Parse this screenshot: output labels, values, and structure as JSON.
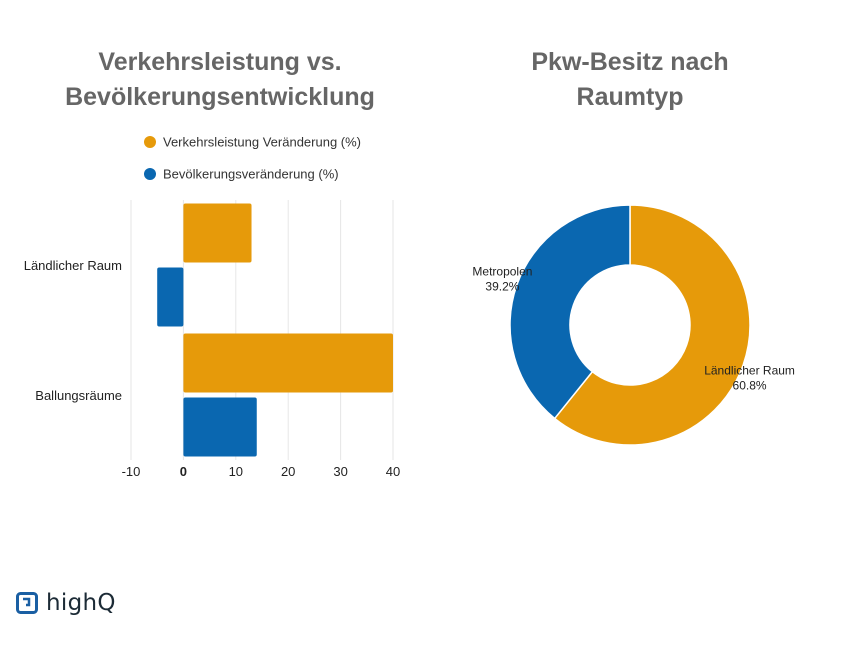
{
  "titles": {
    "left": [
      "Verkehrsleistung vs.",
      "Bevölkerungsentwicklung"
    ],
    "right": [
      "Pkw-Besitz nach",
      "Raumtyp"
    ]
  },
  "colors": {
    "orange": "#E69A0A",
    "blue": "#0A67B0",
    "grid": "#e6e6e6",
    "title": "#666666"
  },
  "chart_data": [
    {
      "type": "bar",
      "orientation": "horizontal",
      "title": "Verkehrsleistung vs. Bevölkerungsentwicklung",
      "categories": [
        "Ländlicher Raum",
        "Ballungsräume"
      ],
      "series": [
        {
          "name": "Verkehrsleistung Veränderung (%)",
          "values": [
            13,
            40
          ],
          "color": "#E69A0A"
        },
        {
          "name": "Bevölkerungsveränderung (%)",
          "values": [
            -5,
            14
          ],
          "color": "#0A67B0"
        }
      ],
      "xlim": [
        -10,
        40
      ],
      "xticks": [
        "-10",
        "0",
        "10",
        "20",
        "30",
        "40"
      ],
      "grid": true,
      "legend_position": "top"
    },
    {
      "type": "pie",
      "donut": true,
      "title": "Pkw-Besitz nach Raumtyp",
      "slices": [
        {
          "label": "Ländlicher Raum",
          "value": 60.8,
          "value_label": "60.8%",
          "color": "#E69A0A"
        },
        {
          "label": "Metropolen",
          "value": 39.2,
          "value_label": "39.2%",
          "color": "#0A67B0"
        }
      ]
    }
  ],
  "logo": {
    "text": "highQ"
  }
}
